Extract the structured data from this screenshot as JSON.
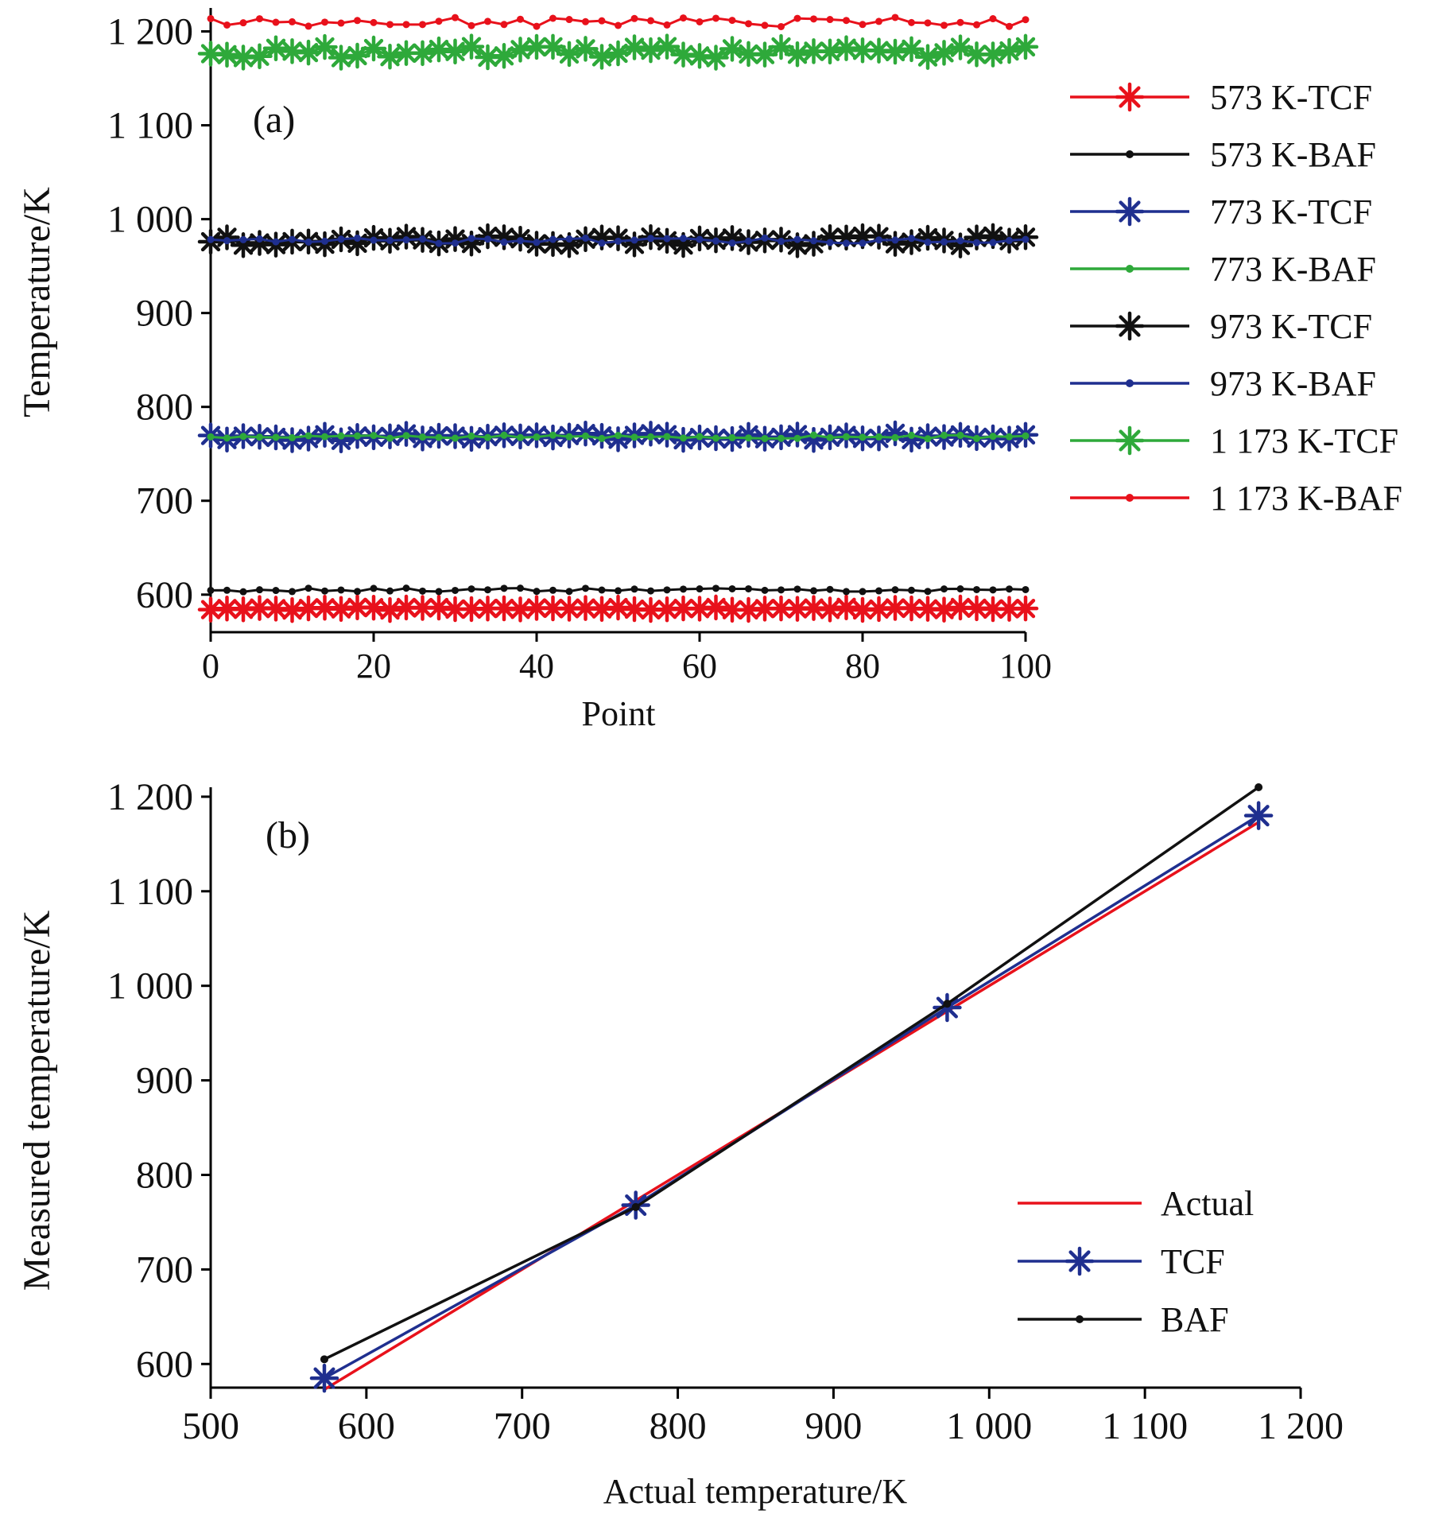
{
  "colors": {
    "red": "#e8111b",
    "black": "#111111",
    "blue": "#1f2f8f",
    "green": "#2ea93a"
  },
  "chart_data": [
    {
      "type": "line",
      "panel_label": "(a)",
      "xlabel": "Point",
      "ylabel": "Temperature/K",
      "xlim": [
        0,
        100
      ],
      "ylim": [
        560,
        1225
      ],
      "x_ticks": [
        "0",
        "20",
        "40",
        "60",
        "80",
        "100"
      ],
      "y_ticks": [
        "600",
        "700",
        "800",
        "900",
        "1 000",
        "1 100",
        "1 200"
      ],
      "x_points": "0..100 step 2",
      "legend_position": "right",
      "series": [
        {
          "name": "573 K-TCF",
          "color": "red",
          "marker": "star",
          "mean": 585,
          "jitter": 1.5
        },
        {
          "name": "573 K-BAF",
          "color": "black",
          "marker": "dot",
          "mean": 605,
          "jitter": 2
        },
        {
          "name": "773 K-TCF",
          "color": "blue",
          "marker": "star",
          "mean": 768,
          "jitter": 4
        },
        {
          "name": "773 K-BAF",
          "color": "green",
          "marker": "dot",
          "mean": 768,
          "jitter": 2
        },
        {
          "name": "973 K-TCF",
          "color": "black",
          "marker": "star",
          "mean": 977,
          "jitter": 5
        },
        {
          "name": "973 K-BAF",
          "color": "blue",
          "marker": "dot",
          "mean": 977,
          "jitter": 3
        },
        {
          "name": "1 173 K-TCF",
          "color": "green",
          "marker": "star",
          "mean": 1178,
          "jitter": 6
        },
        {
          "name": "1 173 K-BAF",
          "color": "red",
          "marker": "dot",
          "mean": 1210,
          "jitter": 5
        }
      ]
    },
    {
      "type": "line",
      "panel_label": "(b)",
      "xlabel": "Actual temperature/K",
      "ylabel": "Measured temperature/K",
      "xlim": [
        500,
        1200
      ],
      "ylim": [
        575,
        1210
      ],
      "x_ticks": [
        "500",
        "600",
        "700",
        "800",
        "900",
        "1 000",
        "1 100",
        "1 200"
      ],
      "y_ticks": [
        "600",
        "700",
        "800",
        "900",
        "1 000",
        "1 100",
        "1 200"
      ],
      "x": [
        573,
        773,
        973,
        1173
      ],
      "legend_position": "bottom-right",
      "series": [
        {
          "name": "Actual",
          "color": "red",
          "marker": "none",
          "values": [
            573,
            773,
            973,
            1173
          ]
        },
        {
          "name": "TCF",
          "color": "blue",
          "marker": "star",
          "values": [
            585,
            768,
            977,
            1180
          ]
        },
        {
          "name": "BAF",
          "color": "black",
          "marker": "dot",
          "values": [
            605,
            766,
            981,
            1210
          ]
        }
      ]
    }
  ]
}
